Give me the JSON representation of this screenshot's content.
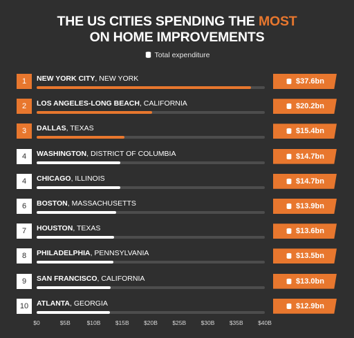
{
  "title_line1_pre": "THE US CITIES SPENDING THE ",
  "title_line1_accent": "MOST",
  "title_line2": "ON HOME IMPROVEMENTS",
  "legend_label": "Total expenditure",
  "colors": {
    "accent": "#e8772e",
    "background": "#2f2f2f",
    "track": "#4d4d4d",
    "white_bar": "#ffffff"
  },
  "chart_data": {
    "type": "bar",
    "orientation": "horizontal",
    "xlim": [
      0,
      40
    ],
    "ticks": [
      "$0",
      "$5B",
      "$10B",
      "$15B",
      "$20B",
      "$25B",
      "$30B",
      "$35B",
      "$40B"
    ],
    "tick_values": [
      0,
      5,
      10,
      15,
      20,
      25,
      30,
      35,
      40
    ],
    "rows": [
      {
        "rank": "1",
        "city": "NEW YORK CITY",
        "state": ", NEW YORK",
        "value": 37.6,
        "label": "$37.6bn",
        "highlight": true
      },
      {
        "rank": "2",
        "city": "LOS ANGELES-LONG BEACH",
        "state": ", CALIFORNIA",
        "value": 20.2,
        "label": "$20.2bn",
        "highlight": true
      },
      {
        "rank": "3",
        "city": "DALLAS",
        "state": ", TEXAS",
        "value": 15.4,
        "label": "$15.4bn",
        "highlight": true
      },
      {
        "rank": "4",
        "city": "WASHINGTON",
        "state": ", DISTRICT OF COLUMBIA",
        "value": 14.7,
        "label": "$14.7bn",
        "highlight": false
      },
      {
        "rank": "4",
        "city": "CHICAGO",
        "state": ", ILLINOIS",
        "value": 14.7,
        "label": "$14.7bn",
        "highlight": false
      },
      {
        "rank": "6",
        "city": "BOSTON",
        "state": ", MASSACHUSETTS",
        "value": 13.9,
        "label": "$13.9bn",
        "highlight": false
      },
      {
        "rank": "7",
        "city": "HOUSTON",
        "state": ", TEXAS",
        "value": 13.6,
        "label": "$13.6bn",
        "highlight": false
      },
      {
        "rank": "8",
        "city": "PHILADELPHIA",
        "state": ", PENNSYLVANIA",
        "value": 13.5,
        "label": "$13.5bn",
        "highlight": false
      },
      {
        "rank": "9",
        "city": "SAN FRANCISCO",
        "state": ", CALIFORNIA",
        "value": 13.0,
        "label": "$13.0bn",
        "highlight": false
      },
      {
        "rank": "10",
        "city": "ATLANTA",
        "state": ", GEORGIA",
        "value": 12.9,
        "label": "$12.9bn",
        "highlight": false
      }
    ]
  }
}
